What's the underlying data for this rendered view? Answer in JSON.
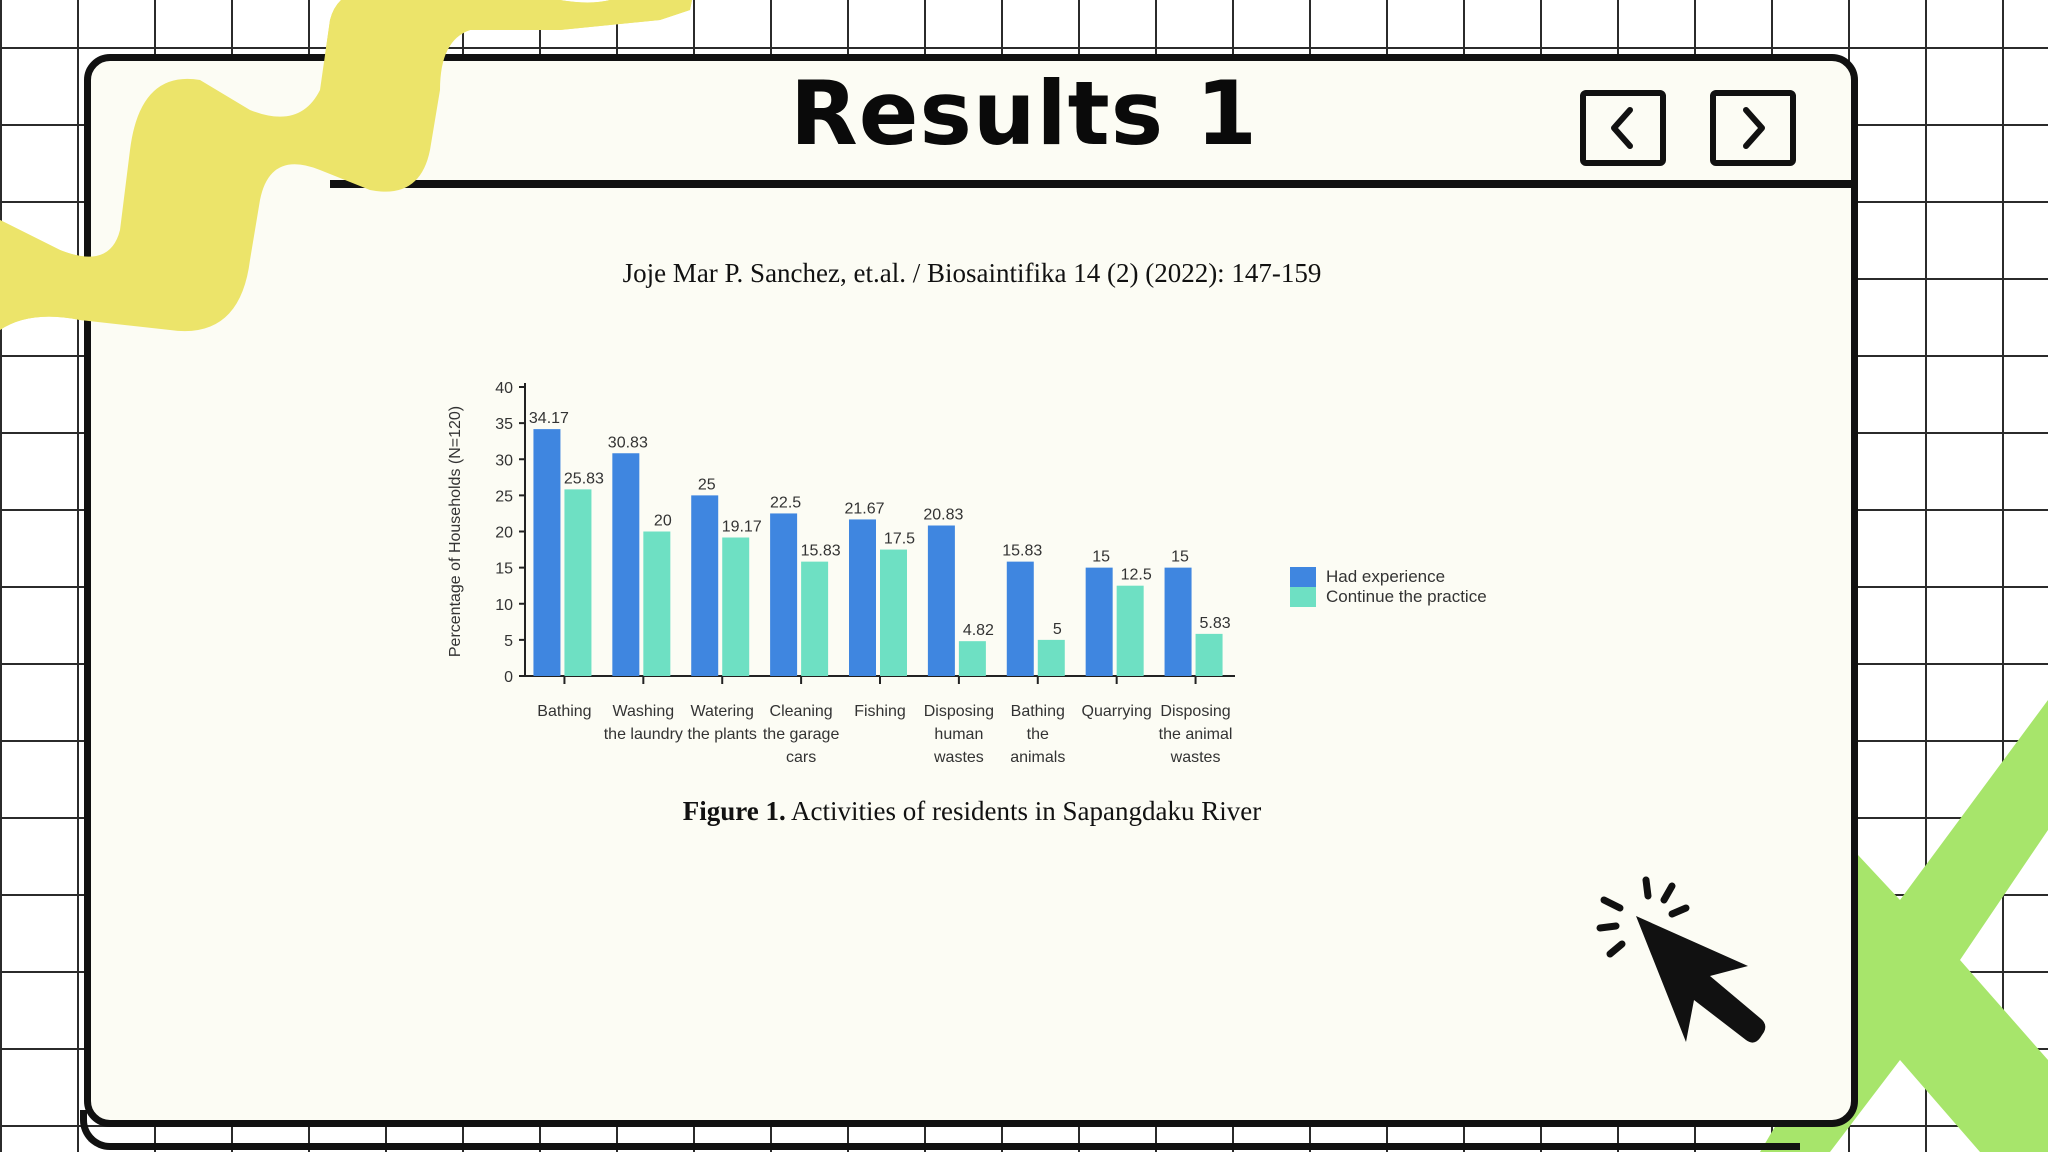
{
  "slide": {
    "title": "Results 1",
    "nav": {
      "prev_icon": "chevron-left-icon",
      "next_icon": "chevron-right-icon"
    },
    "citation": "Joje Mar P. Sanchez, et.al.  / Biosaintifika 14 (2) (2022): 147-159",
    "caption_label": "Figure 1.",
    "caption_text": " Activities of residents in Sapangdaku River"
  },
  "colors": {
    "had_experience": "#3f86e0",
    "continue_practice": "#6ee0c3",
    "yellow_deco": "#ece46a",
    "green_deco": "#a7e56b"
  },
  "chart_data": {
    "type": "bar",
    "ylabel": "Percentage of Households (N=120)",
    "ylim": [
      0,
      40
    ],
    "yticks": [
      0,
      5,
      10,
      15,
      20,
      25,
      30,
      35,
      40
    ],
    "categories": [
      [
        "Bathing"
      ],
      [
        "Washing",
        "the laundry"
      ],
      [
        "Watering",
        "the plants"
      ],
      [
        "Cleaning",
        "the garage",
        "cars"
      ],
      [
        "Fishing"
      ],
      [
        "Disposing",
        "human",
        "wastes"
      ],
      [
        "Bathing",
        "the",
        "animals"
      ],
      [
        "Quarrying"
      ],
      [
        "Disposing",
        "the animal",
        "wastes"
      ]
    ],
    "series": [
      {
        "name": "Had experience",
        "values": [
          34.17,
          30.83,
          25,
          22.5,
          21.67,
          20.83,
          15.83,
          15,
          15
        ],
        "labels": [
          "34.17",
          "30.83",
          "25",
          "22.5",
          "21.67",
          "20.83",
          "15.83",
          "15",
          "15"
        ]
      },
      {
        "name": "Continue the practice",
        "values": [
          25.83,
          20,
          19.17,
          15.83,
          17.5,
          4.82,
          5,
          12.5,
          5.83
        ],
        "labels": [
          "25.83",
          "20",
          "19.17",
          "15.83",
          "17.5",
          "4.82",
          "5",
          "12.5",
          "5.83"
        ]
      }
    ],
    "legend_position": "right"
  }
}
